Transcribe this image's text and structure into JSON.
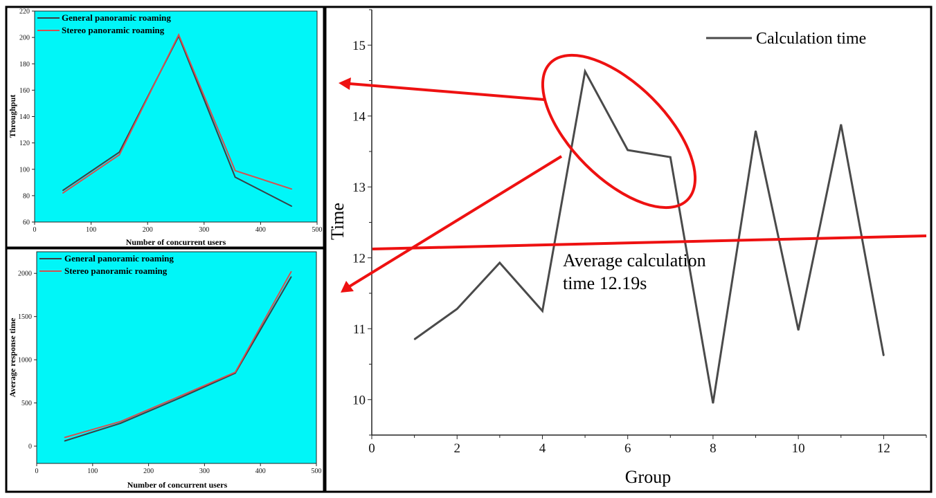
{
  "colors": {
    "general": "#3a3f45",
    "stereo": "#d64f4f",
    "panel_bg": "#00f6f8",
    "calc": "#4a4a4a",
    "annotation": "#ee1111",
    "axis": "#222222"
  },
  "chart_data": [
    {
      "type": "line",
      "panel": "top-left",
      "x": [
        50,
        150,
        255,
        355,
        455
      ],
      "series": [
        {
          "name": "General panoramic roaming",
          "color": "#3a3f45",
          "values": [
            84,
            113,
            201,
            94,
            72
          ]
        },
        {
          "name": "Stereo panoramic roaming",
          "color": "#d64f4f",
          "values": [
            82,
            111,
            202,
            99,
            85
          ]
        }
      ],
      "xlabel": "Number of concurrent users",
      "ylabel": "Throughput",
      "xlim": [
        0,
        500
      ],
      "ylim": [
        60,
        220
      ],
      "xticks": [
        "0",
        "100",
        "200",
        "300",
        "400",
        "500"
      ],
      "yticks": [
        "60",
        "80",
        "100",
        "120",
        "140",
        "160",
        "180",
        "200",
        "220"
      ],
      "legend_position": "top-left",
      "background": "#00f6f8"
    },
    {
      "type": "line",
      "panel": "bottom-left",
      "x": [
        50,
        150,
        255,
        355,
        455
      ],
      "series": [
        {
          "name": "General panoramic roaming",
          "color": "#3a3f45",
          "values": [
            60,
            265,
            555,
            845,
            1960
          ]
        },
        {
          "name": "Stereo panoramic roaming",
          "color": "#d64f4f",
          "values": [
            100,
            285,
            575,
            855,
            2020
          ]
        }
      ],
      "xlabel": "Number of concurrent users",
      "ylabel": "Average response time",
      "xlim": [
        0,
        500
      ],
      "ylim": [
        -200,
        2250
      ],
      "xticks": [
        "0",
        "100",
        "200",
        "300",
        "400",
        "500"
      ],
      "yticks": [
        "0",
        "500",
        "1000",
        "1500",
        "2000"
      ],
      "legend_position": "top-left",
      "background": "#00f6f8"
    },
    {
      "type": "line",
      "panel": "right",
      "x": [
        1,
        2,
        3,
        4,
        5,
        6,
        7,
        8,
        9,
        10,
        11,
        12
      ],
      "series": [
        {
          "name": "Calculation time",
          "color": "#4a4a4a",
          "values": [
            10.85,
            11.28,
            11.93,
            11.25,
            14.63,
            13.52,
            13.42,
            9.95,
            13.79,
            10.98,
            13.88,
            10.62
          ]
        }
      ],
      "xlabel": "Group",
      "ylabel": "Time",
      "xlim": [
        0,
        13
      ],
      "ylim": [
        9.5,
        15.5
      ],
      "xticks": [
        "0",
        "2",
        "4",
        "6",
        "8",
        "10",
        "12"
      ],
      "yticks": [
        "10",
        "11",
        "12",
        "13",
        "14",
        "15"
      ],
      "legend_position": "top-right",
      "annotation": "Average calculation time 12.19s",
      "annotation_lines": [
        "Average calculation",
        "time 12.19s"
      ]
    }
  ]
}
